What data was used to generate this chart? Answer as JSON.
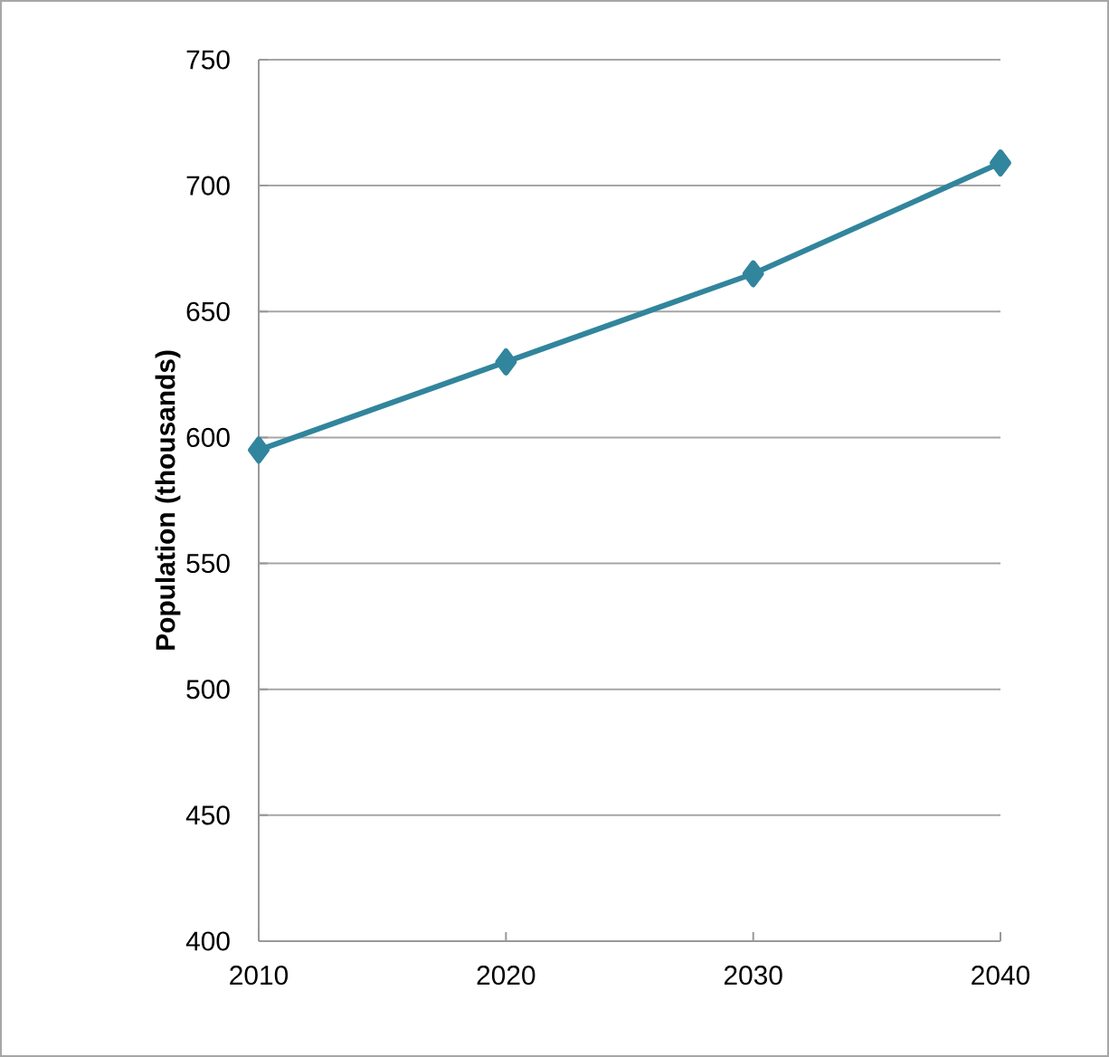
{
  "chart_data": {
    "type": "line",
    "ylabel": "Population (thousands)",
    "categories": [
      "2010",
      "2020",
      "2030",
      "2040"
    ],
    "series": [
      {
        "color": "#31859c",
        "values": [
          595,
          630,
          665,
          709
        ]
      }
    ],
    "ylim": [
      400,
      750
    ],
    "yticks": [
      400,
      450,
      500,
      550,
      600,
      650,
      700,
      750
    ],
    "grid": "y",
    "marker": "diamond",
    "line_style": "solid"
  }
}
